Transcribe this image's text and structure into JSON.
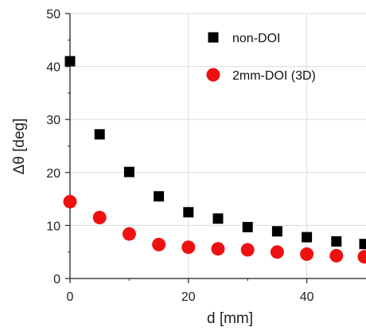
{
  "chart_data": {
    "type": "scatter",
    "xlabel": "d [mm]",
    "ylabel": "Δθ [deg]",
    "xlim": [
      0,
      50
    ],
    "ylim": [
      0,
      50
    ],
    "xticks": [
      "0",
      "20",
      "40"
    ],
    "yticks": [
      "0",
      "10",
      "20",
      "30",
      "40",
      "50"
    ],
    "grid": true,
    "legend_position": "top-right",
    "series": [
      {
        "name": "non-DOI",
        "marker": "square",
        "color": "#000000",
        "x": [
          0,
          5,
          10,
          15,
          20,
          25,
          30,
          35,
          40,
          45,
          50
        ],
        "y": [
          41.0,
          27.2,
          20.1,
          15.5,
          12.5,
          11.3,
          9.7,
          8.9,
          7.8,
          7.0,
          6.5
        ]
      },
      {
        "name": "2mm-DOI (3D)",
        "marker": "circle",
        "color": "#ee1111",
        "x": [
          0,
          5,
          10,
          15,
          20,
          25,
          30,
          35,
          40,
          45,
          50
        ],
        "y": [
          14.5,
          11.5,
          8.4,
          6.4,
          5.9,
          5.6,
          5.4,
          5.0,
          4.6,
          4.3,
          4.1
        ]
      }
    ]
  }
}
